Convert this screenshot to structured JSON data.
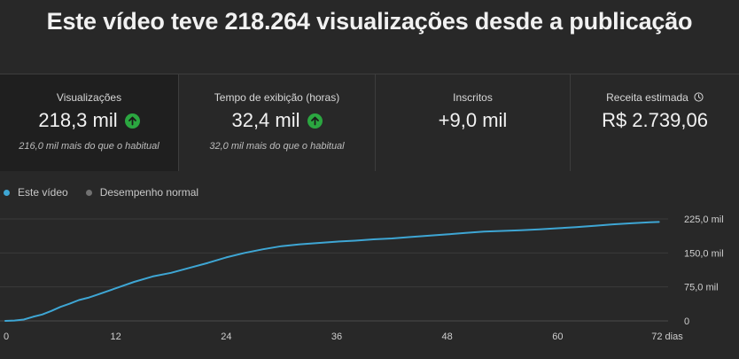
{
  "headline": "Este vídeo teve 218.264 visualizações desde a publicação",
  "cards": [
    {
      "label": "Visualizações",
      "value": "218,3 mil",
      "sub": "216,0 mil mais do que o habitual",
      "trend_icon": "arrow-up-icon"
    },
    {
      "label": "Tempo de exibição (horas)",
      "value": "32,4 mil",
      "sub": "32,0 mil mais do que o habitual",
      "trend_icon": "arrow-up-icon"
    },
    {
      "label": "Inscritos",
      "value": "+9,0 mil",
      "sub": ""
    },
    {
      "label": "Receita estimada",
      "value": "R$ 2.739,06",
      "sub": "",
      "info_icon": "clock-icon"
    }
  ],
  "legend": [
    {
      "label": "Este vídeo",
      "color": "#3ea6d4"
    },
    {
      "label": "Desempenho normal",
      "color": "#717171"
    }
  ],
  "chart_data": {
    "type": "line",
    "x_unit": "dias",
    "xlim": [
      0,
      72
    ],
    "ylim": [
      0,
      225000
    ],
    "x_ticks": [
      {
        "value": 0,
        "label": "0"
      },
      {
        "value": 12,
        "label": "12"
      },
      {
        "value": 24,
        "label": "24"
      },
      {
        "value": 36,
        "label": "36"
      },
      {
        "value": 48,
        "label": "48"
      },
      {
        "value": 60,
        "label": "60"
      },
      {
        "value": 72,
        "label": "72 dias"
      }
    ],
    "y_ticks": [
      {
        "value": 0,
        "label": "0"
      },
      {
        "value": 75000,
        "label": "75,0 mil"
      },
      {
        "value": 150000,
        "label": "150,0 mil"
      },
      {
        "value": 225000,
        "label": "225,0 mil"
      }
    ],
    "grid": true,
    "series": [
      {
        "name": "Este vídeo",
        "color": "#3ea6d4",
        "x": [
          0,
          1,
          2,
          3,
          4,
          5,
          6,
          7,
          8,
          9,
          10,
          12,
          14,
          16,
          18,
          20,
          22,
          24,
          26,
          28,
          30,
          32,
          34,
          36,
          38,
          40,
          42,
          44,
          46,
          48,
          50,
          52,
          54,
          56,
          58,
          60,
          62,
          64,
          66,
          68,
          70,
          71
        ],
        "y": [
          0,
          800,
          3000,
          9000,
          14000,
          22000,
          31000,
          38000,
          46000,
          51000,
          58000,
          72000,
          86000,
          98000,
          106000,
          117000,
          128000,
          140000,
          150000,
          158000,
          165000,
          169000,
          172000,
          175000,
          177000,
          180000,
          182000,
          185000,
          188000,
          191000,
          194000,
          197000,
          198500,
          200000,
          202000,
          204500,
          207000,
          210000,
          213000,
          215500,
          217500,
          218300
        ]
      }
    ]
  }
}
